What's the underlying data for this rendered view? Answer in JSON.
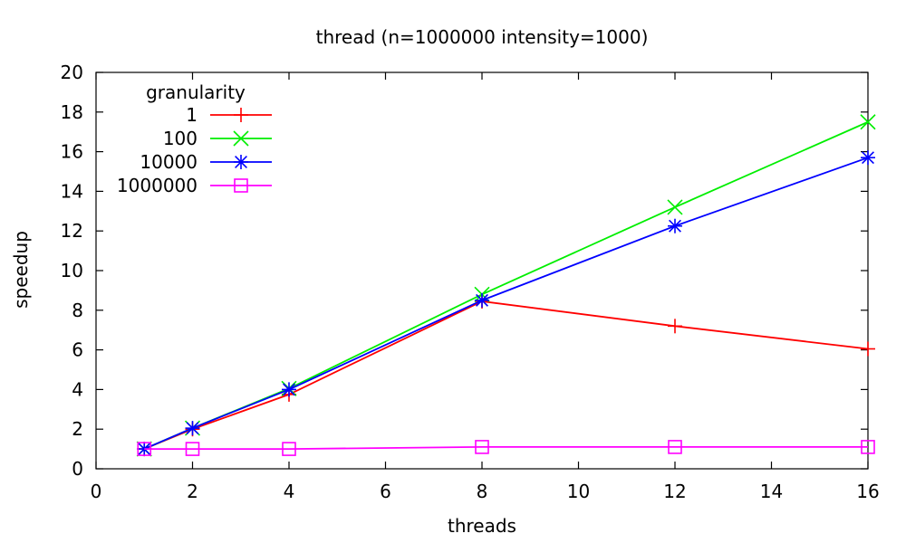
{
  "chart_data": {
    "type": "line",
    "title": "thread (n=1000000 intensity=1000)",
    "xlabel": "threads",
    "ylabel": "speedup",
    "xlim": [
      0,
      16
    ],
    "ylim": [
      0,
      20
    ],
    "xticks": [
      0,
      2,
      4,
      6,
      8,
      10,
      12,
      14,
      16
    ],
    "yticks": [
      0,
      2,
      4,
      6,
      8,
      10,
      12,
      14,
      16,
      18,
      20
    ],
    "grid": false,
    "legend": {
      "title": "granularity",
      "placement": "top-left"
    },
    "series": [
      {
        "name": "1",
        "color": "#ff0000",
        "marker": "plus",
        "x": [
          1,
          2,
          4,
          8,
          12,
          16
        ],
        "y": [
          1.0,
          2.0,
          3.75,
          8.45,
          7.2,
          6.05
        ]
      },
      {
        "name": "100",
        "color": "#00ee00",
        "marker": "cross",
        "x": [
          1,
          2,
          4,
          8,
          12,
          16
        ],
        "y": [
          1.0,
          2.05,
          4.05,
          8.8,
          13.2,
          17.5
        ]
      },
      {
        "name": "10000",
        "color": "#0000ff",
        "marker": "star",
        "x": [
          1,
          2,
          4,
          8,
          12,
          16
        ],
        "y": [
          1.0,
          2.05,
          4.0,
          8.5,
          12.25,
          15.7
        ]
      },
      {
        "name": "1000000",
        "color": "#ff00ff",
        "marker": "square",
        "x": [
          1,
          2,
          4,
          8,
          12,
          16
        ],
        "y": [
          1.0,
          1.0,
          1.0,
          1.1,
          1.1,
          1.1
        ]
      }
    ]
  }
}
